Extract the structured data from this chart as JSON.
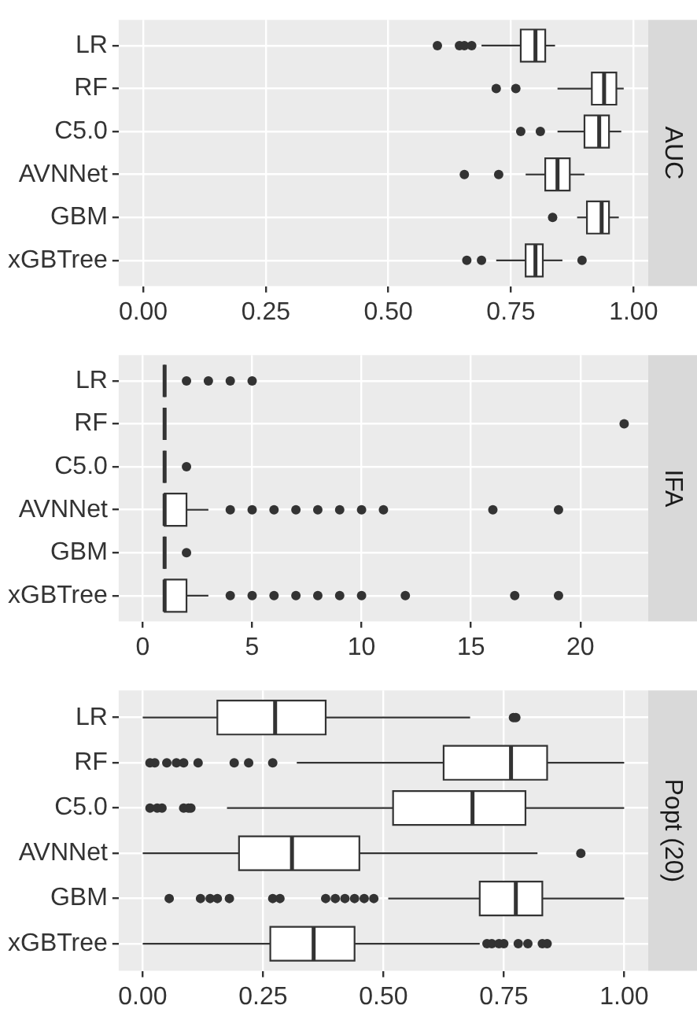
{
  "chart_data": [
    {
      "type": "box",
      "orientation": "horizontal",
      "title": "AUC",
      "categories": [
        "LR",
        "RF",
        "C5.0",
        "AVNNet",
        "GBM",
        "xGBTree"
      ],
      "xlim": [
        -0.05,
        1.03
      ],
      "xticks": [
        {
          "value": 0,
          "label": "0.00"
        },
        0.25,
        {
          "value": 0.5,
          "label": "0.50"
        },
        0.75,
        {
          "value": 1,
          "label": "1.00"
        }
      ],
      "grid": true,
      "boxes": [
        {
          "low": 0.69,
          "q1": 0.77,
          "median": 0.8,
          "q3": 0.82,
          "high": 0.84,
          "outliers": [
            0.6,
            0.645,
            0.655,
            0.67
          ]
        },
        {
          "low": 0.845,
          "q1": 0.915,
          "median": 0.94,
          "q3": 0.965,
          "high": 0.98,
          "outliers": [
            0.72,
            0.76
          ]
        },
        {
          "low": 0.845,
          "q1": 0.9,
          "median": 0.93,
          "q3": 0.95,
          "high": 0.975,
          "outliers": [
            0.77,
            0.81
          ]
        },
        {
          "low": 0.78,
          "q1": 0.82,
          "median": 0.845,
          "q3": 0.87,
          "high": 0.9,
          "outliers": [
            0.655,
            0.725
          ]
        },
        {
          "low": 0.885,
          "q1": 0.905,
          "median": 0.935,
          "q3": 0.95,
          "high": 0.97,
          "outliers": [
            0.835
          ]
        },
        {
          "low": 0.72,
          "q1": 0.78,
          "median": 0.8,
          "q3": 0.815,
          "high": 0.855,
          "outliers": [
            0.66,
            0.69,
            0.895
          ]
        }
      ]
    },
    {
      "type": "box",
      "orientation": "horizontal",
      "title": "IFA",
      "categories": [
        "LR",
        "RF",
        "C5.0",
        "AVNNet",
        "GBM",
        "xGBTree"
      ],
      "xlim": [
        -1.1,
        23.1
      ],
      "xticks": [
        0,
        5,
        10,
        15,
        20
      ],
      "grid": true,
      "boxes": [
        {
          "low": 1,
          "q1": 1,
          "median": 1,
          "q3": 1,
          "high": 1,
          "outliers": [
            2,
            3,
            4,
            5
          ]
        },
        {
          "low": 1,
          "q1": 1,
          "median": 1,
          "q3": 1,
          "high": 1,
          "outliers": [
            22
          ]
        },
        {
          "low": 1,
          "q1": 1,
          "median": 1,
          "q3": 1,
          "high": 1,
          "outliers": [
            2
          ]
        },
        {
          "low": 1,
          "q1": 1,
          "median": 1,
          "q3": 2,
          "high": 3,
          "outliers": [
            4,
            5,
            6,
            7,
            8,
            9,
            10,
            11,
            16,
            19
          ]
        },
        {
          "low": 1,
          "q1": 1,
          "median": 1,
          "q3": 1,
          "high": 1,
          "outliers": [
            2
          ]
        },
        {
          "low": 1,
          "q1": 1,
          "median": 1,
          "q3": 2,
          "high": 3,
          "outliers": [
            4,
            5,
            6,
            7,
            8,
            9,
            10,
            12,
            17,
            19
          ]
        }
      ]
    },
    {
      "type": "box",
      "orientation": "horizontal",
      "title": "Popt (20)",
      "categories": [
        "LR",
        "RF",
        "C5.0",
        "AVNNet",
        "GBM",
        "xGBTree"
      ],
      "xlim": [
        -0.05,
        1.05
      ],
      "xticks": [
        {
          "value": 0,
          "label": "0.00"
        },
        0.25,
        {
          "value": 0.5,
          "label": "0.50"
        },
        0.75,
        {
          "value": 1,
          "label": "1.00"
        }
      ],
      "grid": true,
      "boxes": [
        {
          "low": 0,
          "q1": 0.155,
          "median": 0.275,
          "q3": 0.38,
          "high": 0.68,
          "outliers": [
            0.77,
            0.775
          ]
        },
        {
          "low": 0.32,
          "q1": 0.625,
          "median": 0.765,
          "q3": 0.84,
          "high": 1,
          "outliers": [
            0.015,
            0.025,
            0.05,
            0.07,
            0.085,
            0.115,
            0.19,
            0.22,
            0.27
          ]
        },
        {
          "low": 0.175,
          "q1": 0.52,
          "median": 0.685,
          "q3": 0.795,
          "high": 1,
          "outliers": [
            0.015,
            0.03,
            0.04,
            0.085,
            0.095,
            0.1
          ]
        },
        {
          "low": 0,
          "q1": 0.2,
          "median": 0.31,
          "q3": 0.45,
          "high": 0.82,
          "outliers": [
            0.91
          ]
        },
        {
          "low": 0.51,
          "q1": 0.7,
          "median": 0.775,
          "q3": 0.83,
          "high": 1,
          "outliers": [
            0.055,
            0.12,
            0.14,
            0.155,
            0.18,
            0.27,
            0.285,
            0.38,
            0.4,
            0.42,
            0.44,
            0.46,
            0.48
          ]
        },
        {
          "low": 0,
          "q1": 0.265,
          "median": 0.355,
          "q3": 0.44,
          "high": 0.7,
          "outliers": [
            0.715,
            0.725,
            0.74,
            0.75,
            0.78,
            0.8,
            0.83,
            0.84
          ]
        }
      ]
    }
  ]
}
